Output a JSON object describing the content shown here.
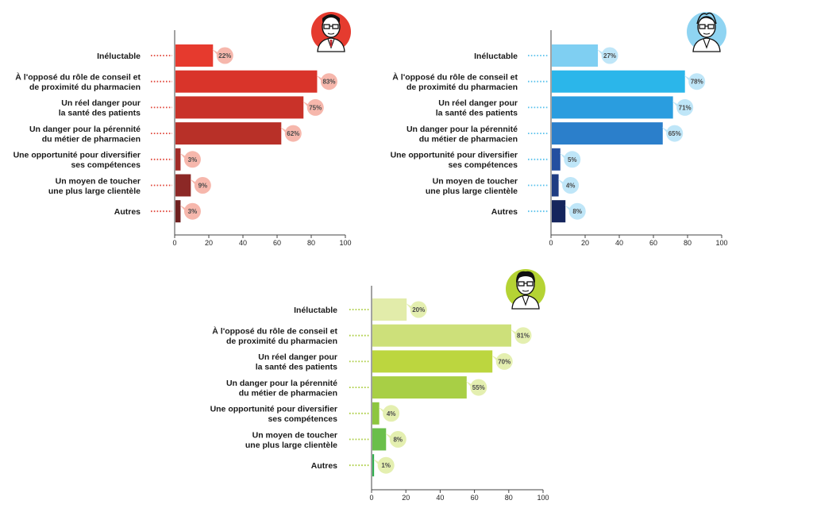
{
  "chart_data": [
    {
      "type": "bar",
      "orientation": "horizontal",
      "name": "chart-red",
      "categories": [
        [
          "Inéluctable"
        ],
        [
          "À l'opposé du rôle de conseil et",
          "de proximité du pharmacien"
        ],
        [
          "Un réel danger pour",
          "la santé des patients"
        ],
        [
          "Un danger pour la pérennité",
          "du métier de pharmacien"
        ],
        [
          "Une opportunité pour diversifier",
          "ses compétences"
        ],
        [
          "Un moyen de toucher",
          "une plus large clientèle"
        ],
        [
          "Autres"
        ]
      ],
      "values": [
        22,
        83,
        75,
        62,
        3,
        9,
        3
      ],
      "value_labels": [
        "22%",
        "83%",
        "75%",
        "62%",
        "3%",
        "9%",
        "3%"
      ],
      "bar_colors": [
        "#e63a2e",
        "#d9342a",
        "#c93229",
        "#b83028",
        "#a12b27",
        "#8c2826",
        "#6e1f1e"
      ],
      "accent_color": "#e0463a",
      "bubble_color": "#f6b7ac",
      "xlim": [
        0,
        100
      ],
      "xticks": [
        "0",
        "20",
        "40",
        "60",
        "80",
        "100"
      ],
      "xlabel": "",
      "ylabel": "",
      "title": "",
      "avatar_color": "#e53b2f"
    },
    {
      "type": "bar",
      "orientation": "horizontal",
      "name": "chart-blue",
      "categories": [
        [
          "Inéluctable"
        ],
        [
          "À l'opposé du rôle de conseil et",
          "de proximité du pharmacien"
        ],
        [
          "Un réel danger pour",
          "la santé des patients"
        ],
        [
          "Un danger pour la pérennité",
          "du métier de pharmacien"
        ],
        [
          "Une opportunité pour diversifier",
          "ses compétences"
        ],
        [
          "Un moyen de toucher",
          "une plus large clientèle"
        ],
        [
          "Autres"
        ]
      ],
      "values": [
        27,
        78,
        71,
        65,
        5,
        4,
        8
      ],
      "value_labels": [
        "27%",
        "78%",
        "71%",
        "65%",
        "5%",
        "4%",
        "8%"
      ],
      "bar_colors": [
        "#7fcff2",
        "#2bb6ea",
        "#2a9ddf",
        "#2b7fcb",
        "#244fa0",
        "#1f3d83",
        "#15255d"
      ],
      "accent_color": "#57c1ec",
      "bubble_color": "#bfe6f8",
      "xlim": [
        0,
        100
      ],
      "xticks": [
        "0",
        "20",
        "40",
        "60",
        "80",
        "100"
      ],
      "xlabel": "",
      "ylabel": "",
      "title": "",
      "avatar_color": "#8fd4f2"
    },
    {
      "type": "bar",
      "orientation": "horizontal",
      "name": "chart-green",
      "categories": [
        [
          "Inéluctable"
        ],
        [
          "À l'opposé du rôle de conseil et",
          "de proximité du pharmacien"
        ],
        [
          "Un réel danger pour",
          "la santé des patients"
        ],
        [
          "Un danger pour la pérennité",
          "du métier de pharmacien"
        ],
        [
          "Une opportunité pour diversifier",
          "ses compétences"
        ],
        [
          "Un moyen de toucher",
          "une plus large clientèle"
        ],
        [
          "Autres"
        ]
      ],
      "values": [
        20,
        81,
        70,
        55,
        4,
        8,
        1
      ],
      "value_labels": [
        "20%",
        "81%",
        "70%",
        "55%",
        "4%",
        "8%",
        "1%"
      ],
      "bar_colors": [
        "#e2ecaa",
        "#cde07a",
        "#bcd63f",
        "#a8cf45",
        "#8dc63f",
        "#6abf4b",
        "#2fae4e"
      ],
      "accent_color": "#a9cc3c",
      "bubble_color": "#e4efb0",
      "xlim": [
        0,
        100
      ],
      "xticks": [
        "0",
        "20",
        "40",
        "60",
        "80",
        "100"
      ],
      "xlabel": "",
      "ylabel": "",
      "title": "",
      "avatar_color": "#b5d334"
    }
  ]
}
